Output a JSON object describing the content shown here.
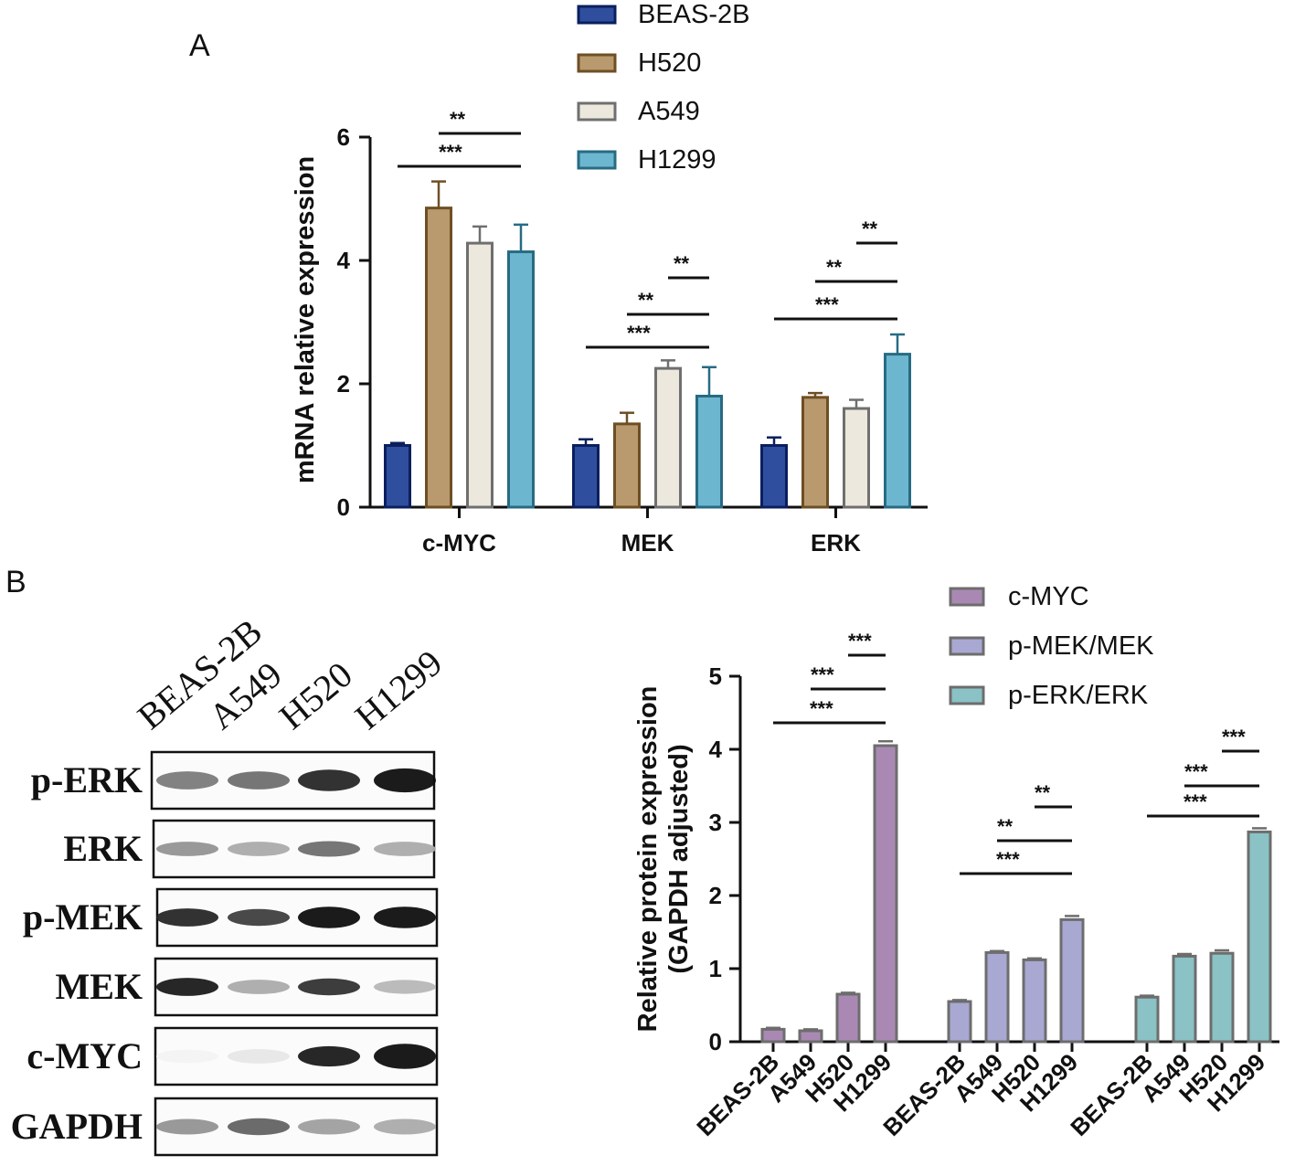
{
  "panels": {
    "a": "A",
    "b": "B"
  },
  "chart_data": [
    {
      "type": "bar",
      "ylabel": "mRNA relative expression",
      "xlabel": "",
      "ylim": [
        0,
        6
      ],
      "yticks": [
        "0",
        "2",
        "4",
        "6"
      ],
      "categories": [
        "c-MYC",
        "MEK",
        "ERK"
      ],
      "legend": {
        "position": "top-right"
      },
      "series": [
        {
          "name": "BEAS-2B",
          "color": "#2f4f9e",
          "edge": "#0b1f5e",
          "values": [
            1.0,
            1.0,
            1.0
          ],
          "errors": [
            0.04,
            0.1,
            0.13
          ]
        },
        {
          "name": "H520",
          "color": "#b89a6e",
          "edge": "#6e4f24",
          "values": [
            4.85,
            1.35,
            1.78
          ],
          "errors": [
            0.43,
            0.18,
            0.07
          ]
        },
        {
          "name": "A549",
          "color": "#ece8de",
          "edge": "#6f6f6f",
          "values": [
            4.28,
            2.25,
            1.6
          ],
          "errors": [
            0.27,
            0.13,
            0.14
          ]
        },
        {
          "name": "H1299",
          "color": "#6db6cf",
          "edge": "#276b83",
          "values": [
            4.14,
            1.8,
            2.48
          ],
          "errors": [
            0.44,
            0.47,
            0.32
          ]
        }
      ],
      "significance": [
        {
          "group": 0,
          "from": 0,
          "to": 3,
          "label": "***",
          "level": 0
        },
        {
          "group": 0,
          "from": 1,
          "to": 3,
          "label": "**",
          "level": 1
        },
        {
          "group": 1,
          "from": 0,
          "to": 3,
          "label": "***",
          "level": 0
        },
        {
          "group": 1,
          "from": 1,
          "to": 3,
          "label": "**",
          "level": 1
        },
        {
          "group": 1,
          "from": 2,
          "to": 3,
          "label": "**",
          "level": 2
        },
        {
          "group": 2,
          "from": 0,
          "to": 3,
          "label": "***",
          "level": 0
        },
        {
          "group": 2,
          "from": 1,
          "to": 3,
          "label": "**",
          "level": 1
        },
        {
          "group": 2,
          "from": 2,
          "to": 3,
          "label": "**",
          "level": 2
        }
      ]
    },
    {
      "type": "bar",
      "ylabel": "Relative protein expression",
      "ylabel2": "(GAPDH adjusted)",
      "xlabel": "",
      "ylim": [
        0,
        5
      ],
      "yticks": [
        "0",
        "1",
        "2",
        "3",
        "4",
        "5"
      ],
      "legend": {
        "position": "top-right"
      },
      "x_tick_labels": [
        "BEAS-2B",
        "A549",
        "H520",
        "H1299"
      ],
      "series": [
        {
          "name": "c-MYC",
          "color": "#a989b3",
          "edge": "#6d6d6d",
          "values": [
            0.17,
            0.15,
            0.65,
            4.05
          ],
          "errors": [
            0.02,
            0.02,
            0.02,
            0.06
          ]
        },
        {
          "name": "p-MEK/MEK",
          "color": "#a8a8d2",
          "edge": "#6d6d6d",
          "values": [
            0.55,
            1.22,
            1.12,
            1.67
          ],
          "errors": [
            0.02,
            0.02,
            0.02,
            0.05
          ]
        },
        {
          "name": "p-ERK/ERK",
          "color": "#8ac2c5",
          "edge": "#6d6d6d",
          "values": [
            0.61,
            1.17,
            1.21,
            2.87
          ],
          "errors": [
            0.02,
            0.03,
            0.04,
            0.05
          ]
        }
      ],
      "significance": [
        {
          "group": 0,
          "from": 0,
          "to": 3,
          "label": "***",
          "level": 0
        },
        {
          "group": 0,
          "from": 1,
          "to": 3,
          "label": "***",
          "level": 1
        },
        {
          "group": 0,
          "from": 2,
          "to": 3,
          "label": "***",
          "level": 2
        },
        {
          "group": 1,
          "from": 0,
          "to": 3,
          "label": "***",
          "level": 0
        },
        {
          "group": 1,
          "from": 1,
          "to": 3,
          "label": "**",
          "level": 1
        },
        {
          "group": 1,
          "from": 2,
          "to": 3,
          "label": "**",
          "level": 2
        },
        {
          "group": 2,
          "from": 0,
          "to": 3,
          "label": "***",
          "level": 0
        },
        {
          "group": 2,
          "from": 1,
          "to": 3,
          "label": "***",
          "level": 1
        },
        {
          "group": 2,
          "from": 2,
          "to": 3,
          "label": "***",
          "level": 2
        }
      ]
    }
  ],
  "blot": {
    "lanes": [
      "BEAS-2B",
      "A549",
      "H520",
      "H1299"
    ],
    "rows": [
      {
        "label": "p-ERK",
        "intensity": [
          0.55,
          0.6,
          0.9,
          1.0
        ],
        "thickness": [
          0.45,
          0.45,
          0.6,
          0.7
        ]
      },
      {
        "label": "ERK",
        "intensity": [
          0.45,
          0.35,
          0.6,
          0.35
        ],
        "thickness": [
          0.3,
          0.3,
          0.35,
          0.3
        ]
      },
      {
        "label": "p-MEK",
        "intensity": [
          0.9,
          0.8,
          1.0,
          1.0
        ],
        "thickness": [
          0.45,
          0.4,
          0.6,
          0.6
        ]
      },
      {
        "label": "MEK",
        "intensity": [
          0.95,
          0.35,
          0.85,
          0.3
        ],
        "thickness": [
          0.45,
          0.3,
          0.4,
          0.28
        ]
      },
      {
        "label": "c-MYC",
        "intensity": [
          0.05,
          0.1,
          0.95,
          1.0
        ],
        "thickness": [
          0.25,
          0.3,
          0.55,
          0.75
        ]
      },
      {
        "label": "GAPDH",
        "intensity": [
          0.45,
          0.65,
          0.4,
          0.35
        ],
        "thickness": [
          0.35,
          0.4,
          0.35,
          0.35
        ]
      }
    ]
  }
}
